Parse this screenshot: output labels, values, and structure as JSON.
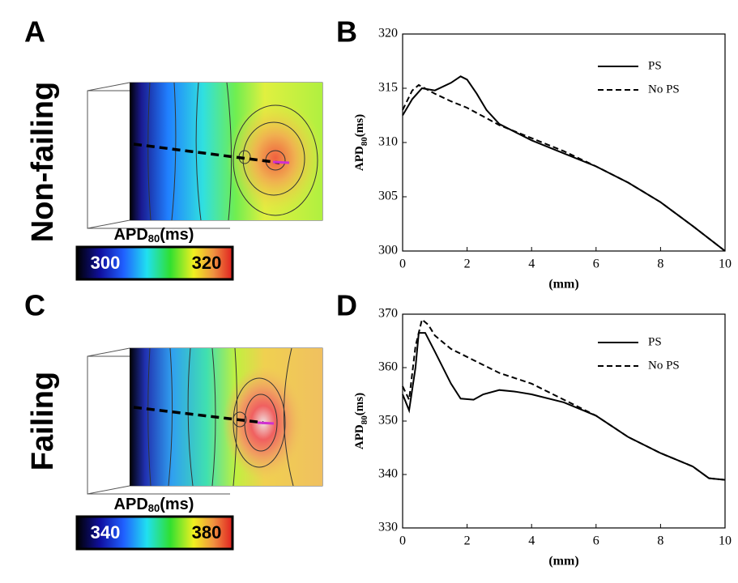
{
  "panels": {
    "a": "A",
    "b": "B",
    "c": "C",
    "d": "D"
  },
  "side_labels": [
    "Non-failing",
    "Failing"
  ],
  "colorbars": [
    {
      "title": {
        "main": "APD",
        "sub": "80",
        "unit": "(ms)"
      },
      "min_label": "300",
      "max_label": "320"
    },
    {
      "title": {
        "main": "APD",
        "sub": "80",
        "unit": "(ms)"
      },
      "min_label": "340",
      "max_label": "380"
    }
  ],
  "chart_data": [
    {
      "type": "line",
      "xlabel": "(mm)",
      "ylabel": {
        "main": "APD",
        "sub": "80",
        "unit": "(ms)"
      },
      "xlim": [
        0,
        10
      ],
      "xticks": [
        0,
        2,
        4,
        6,
        8,
        10
      ],
      "ylim": [
        300,
        320
      ],
      "yticks": [
        300,
        305,
        310,
        315,
        320
      ],
      "legend": "upper right",
      "series": [
        {
          "name": "PS",
          "color": "#000000",
          "dashed": false,
          "x": [
            0,
            0.3,
            0.6,
            1,
            1.5,
            1.8,
            2,
            2.3,
            2.6,
            3,
            4,
            5,
            6,
            7,
            8,
            9,
            10
          ],
          "values": [
            312.5,
            314,
            315,
            314.8,
            315.5,
            316.1,
            315.8,
            314.5,
            313,
            311.7,
            310.2,
            309,
            307.8,
            306.3,
            304.5,
            302.3,
            300
          ]
        },
        {
          "name": "No PS",
          "color": "#000000",
          "dashed": true,
          "x": [
            0,
            0.3,
            0.5,
            1,
            1.5,
            2,
            2.5,
            3,
            4,
            5,
            6,
            7,
            8,
            9,
            10
          ],
          "values": [
            313,
            314.8,
            315.3,
            314.5,
            313.8,
            313.2,
            312.4,
            311.6,
            310.4,
            309.2,
            307.8,
            306.3,
            304.5,
            302.3,
            300
          ]
        }
      ]
    },
    {
      "type": "line",
      "xlabel": "(mm)",
      "ylabel": {
        "main": "APD",
        "sub": "80",
        "unit": "(ms)"
      },
      "xlim": [
        0,
        10
      ],
      "xticks": [
        0,
        2,
        4,
        6,
        8,
        10
      ],
      "ylim": [
        330,
        370
      ],
      "yticks": [
        330,
        340,
        350,
        360,
        370
      ],
      "legend": "upper right",
      "series": [
        {
          "name": "PS",
          "color": "#000000",
          "dashed": false,
          "x": [
            0,
            0.2,
            0.4,
            0.5,
            0.7,
            1,
            1.5,
            1.8,
            2.2,
            2.5,
            3,
            3.5,
            4,
            5,
            6,
            7,
            8,
            9,
            9.5,
            10
          ],
          "values": [
            355,
            352,
            360,
            366.5,
            366.5,
            363,
            357,
            354.2,
            354,
            355,
            355.8,
            355.5,
            355,
            353.5,
            351,
            347,
            344,
            341.5,
            339.3,
            339
          ]
        },
        {
          "name": "No PS",
          "color": "#000000",
          "dashed": true,
          "x": [
            0,
            0.2,
            0.4,
            0.6,
            0.8,
            1,
            1.5,
            2,
            3,
            4,
            5,
            6,
            7,
            8,
            9,
            9.5,
            10
          ],
          "values": [
            356.5,
            354,
            364,
            369,
            368,
            366,
            363.5,
            362,
            359,
            357,
            354,
            351,
            347,
            344,
            341.5,
            339.3,
            339
          ]
        }
      ]
    }
  ]
}
